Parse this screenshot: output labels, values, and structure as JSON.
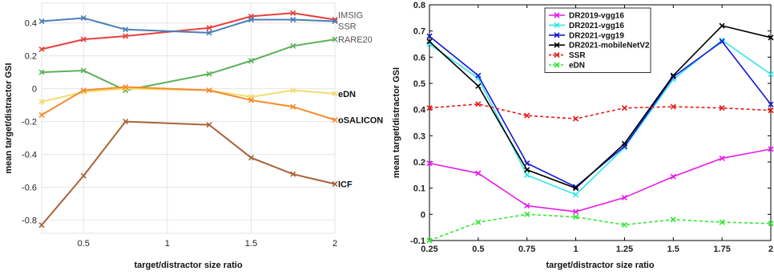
{
  "chart_data": [
    {
      "type": "line",
      "xlabel": "target/distractor size ratio",
      "ylabel": "mean target/distractor GSI",
      "xlim": [
        0.25,
        2
      ],
      "ylim": [
        -0.88,
        0.52
      ],
      "x_ticks": [
        0.5,
        1,
        1.5,
        2
      ],
      "x_tick_labels": [
        "0.5",
        "1",
        "1.5",
        "2"
      ],
      "y_ticks": [
        -0.8,
        -0.6,
        -0.4,
        -0.2,
        0,
        0.2,
        0.4
      ],
      "y_tick_labels": [
        "-0.8",
        "-0.6",
        "-0.4",
        "-0.2",
        "0",
        "0.2",
        "0.4"
      ],
      "grid": true,
      "legend": "labels at line ends",
      "x": [
        0.25,
        0.5,
        0.75,
        1.25,
        1.5,
        1.75,
        2
      ],
      "series": [
        {
          "name": "IMSIG",
          "color": "#e8413c",
          "label_bold": false,
          "values": [
            0.24,
            0.3,
            0.32,
            0.37,
            0.44,
            0.46,
            0.42
          ]
        },
        {
          "name": "SSR",
          "color": "#4a7fb5",
          "label_bold": false,
          "values": [
            0.41,
            0.43,
            0.36,
            0.34,
            0.42,
            0.42,
            0.41
          ]
        },
        {
          "name": "RARE20",
          "color": "#5bb25a",
          "label_bold": false,
          "values": [
            0.1,
            0.11,
            -0.01,
            0.09,
            0.17,
            0.26,
            0.3
          ]
        },
        {
          "name": "eDN",
          "color": "#f2dd6e",
          "label_bold": true,
          "values": [
            -0.08,
            -0.02,
            0.0,
            -0.01,
            -0.05,
            -0.01,
            -0.03
          ]
        },
        {
          "name": "oSALICON",
          "color": "#f58b2b",
          "label_bold": true,
          "values": [
            -0.16,
            -0.01,
            0.01,
            -0.01,
            -0.07,
            -0.11,
            -0.19
          ]
        },
        {
          "name": "ICF",
          "color": "#a8633a",
          "label_bold": true,
          "values": [
            -0.83,
            -0.53,
            -0.2,
            -0.22,
            -0.42,
            -0.52,
            -0.58
          ]
        }
      ]
    },
    {
      "type": "line",
      "xlabel": "target/distractor size ratio",
      "ylabel": "mean target/distractor GSI",
      "xlim": [
        0.25,
        2
      ],
      "ylim": [
        -0.1,
        0.8
      ],
      "x_ticks": [
        0.25,
        0.5,
        0.75,
        1,
        1.25,
        1.5,
        1.75,
        2
      ],
      "x_tick_labels": [
        "0.25",
        "0.5",
        "0.75",
        "1",
        "1.25",
        "1.5",
        "1.75",
        "2"
      ],
      "y_ticks": [
        -0.1,
        0,
        0.1,
        0.2,
        0.3,
        0.4,
        0.5,
        0.6,
        0.7,
        0.8
      ],
      "y_tick_labels": [
        "-0.1",
        "0",
        "0.1",
        "0.2",
        "0.3",
        "0.4",
        "0.5",
        "0.6",
        "0.7",
        "0.8"
      ],
      "grid": false,
      "legend": "top-center",
      "x": [
        0.25,
        0.5,
        0.75,
        1,
        1.25,
        1.5,
        1.75,
        2
      ],
      "series": [
        {
          "name": "DR2019-vgg16",
          "color": "#e61ce6",
          "dashed": false,
          "values": [
            0.195,
            0.157,
            0.033,
            0.01,
            0.064,
            0.144,
            0.214,
            0.249
          ]
        },
        {
          "name": "DR2021-vgg16",
          "color": "#33e6e6",
          "dashed": false,
          "values": [
            0.65,
            0.52,
            0.15,
            0.075,
            0.255,
            0.515,
            0.665,
            0.535
          ]
        },
        {
          "name": "DR2021-vgg19",
          "color": "#1515d6",
          "dashed": false,
          "values": [
            0.68,
            0.53,
            0.195,
            0.105,
            0.26,
            0.525,
            0.66,
            0.42
          ]
        },
        {
          "name": "DR2021-mobileNetV2",
          "color": "#000000",
          "dashed": false,
          "values": [
            0.66,
            0.49,
            0.17,
            0.1,
            0.27,
            0.53,
            0.72,
            0.675
          ]
        },
        {
          "name": "SSR",
          "color": "#e61919",
          "dashed": true,
          "values": [
            0.406,
            0.421,
            0.377,
            0.365,
            0.406,
            0.411,
            0.406,
            0.397
          ]
        },
        {
          "name": "eDN",
          "color": "#33e633",
          "dashed": true,
          "values": [
            -0.1,
            -0.03,
            0.0,
            -0.01,
            -0.04,
            -0.02,
            -0.03,
            -0.035
          ]
        }
      ]
    }
  ]
}
